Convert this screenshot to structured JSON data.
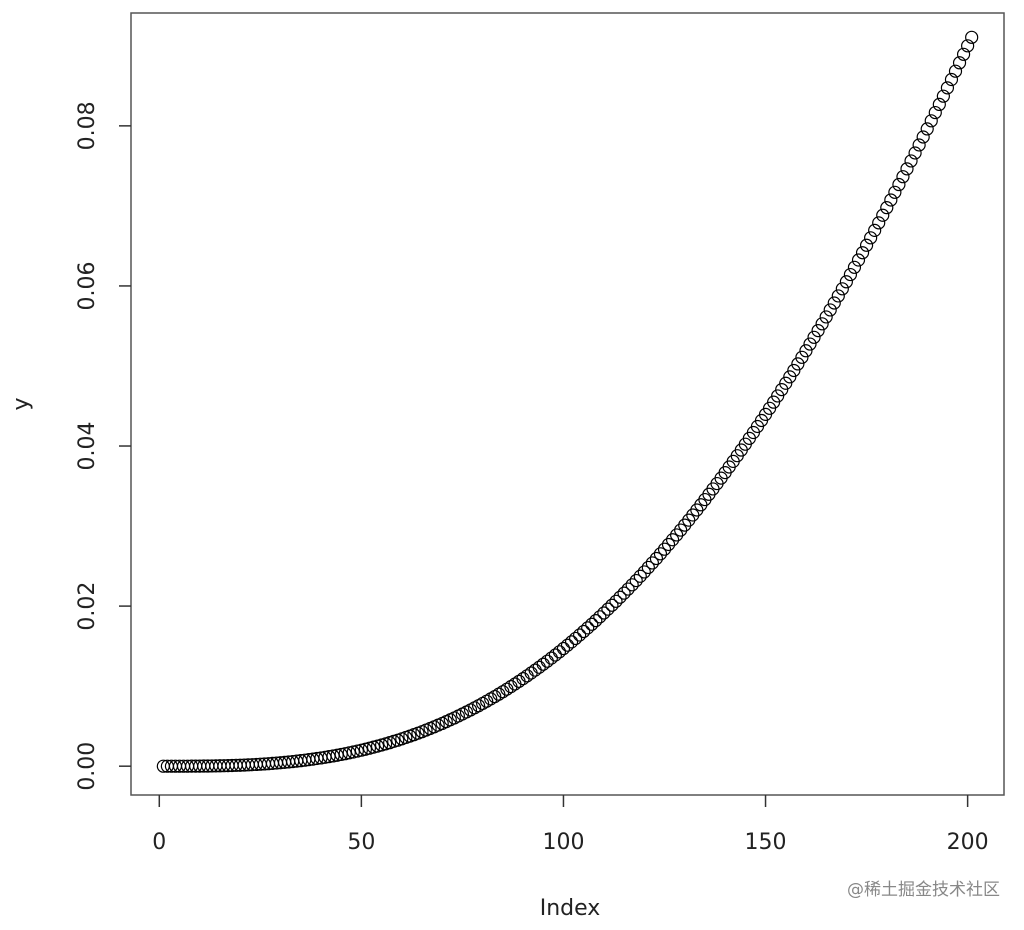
{
  "chart_data": {
    "type": "scatter",
    "xlabel": "Index",
    "ylabel": "y",
    "watermark": "@稀土掘金技术社区",
    "x": [
      1,
      2,
      3,
      4,
      5,
      6,
      7,
      8,
      9,
      10,
      11,
      12,
      13,
      14,
      15,
      16,
      17,
      18,
      19,
      20,
      21,
      22,
      23,
      24,
      25,
      26,
      27,
      28,
      29,
      30,
      31,
      32,
      33,
      34,
      35,
      36,
      37,
      38,
      39,
      40,
      41,
      42,
      43,
      44,
      45,
      46,
      47,
      48,
      49,
      50,
      51,
      52,
      53,
      54,
      55,
      56,
      57,
      58,
      59,
      60,
      61,
      62,
      63,
      64,
      65,
      66,
      67,
      68,
      69,
      70,
      71,
      72,
      73,
      74,
      75,
      76,
      77,
      78,
      79,
      80,
      81,
      82,
      83,
      84,
      85,
      86,
      87,
      88,
      89,
      90,
      91,
      92,
      93,
      94,
      95,
      96,
      97,
      98,
      99,
      100,
      101,
      102,
      103,
      104,
      105,
      106,
      107,
      108,
      109,
      110,
      111,
      112,
      113,
      114,
      115,
      116,
      117,
      118,
      119,
      120,
      121,
      122,
      123,
      124,
      125,
      126,
      127,
      128,
      129,
      130,
      131,
      132,
      133,
      134,
      135,
      136,
      137,
      138,
      139,
      140,
      141,
      142,
      143,
      144,
      145,
      146,
      147,
      148,
      149,
      150,
      151,
      152,
      153,
      154,
      155,
      156,
      157,
      158,
      159,
      160,
      161,
      162,
      163,
      164,
      165,
      166,
      167,
      168,
      169,
      170,
      171,
      172,
      173,
      174,
      175,
      176,
      177,
      178,
      179,
      180,
      181,
      182,
      183,
      184,
      185,
      186,
      187,
      188,
      189,
      190,
      191,
      192,
      193,
      194,
      195,
      196,
      197,
      198,
      199,
      200,
      201
    ],
    "values": [
      0,
      0,
      0,
      0,
      0,
      0,
      0,
      1e-05,
      1e-05,
      1e-05,
      2e-05,
      2e-05,
      3e-05,
      4e-05,
      5e-05,
      6e-05,
      7e-05,
      9e-05,
      0.00011,
      0.00012,
      0.00014,
      0.00017,
      0.00019,
      0.00022,
      0.00025,
      0.00028,
      0.00031,
      0.00035,
      0.00039,
      0.00043,
      0.00048,
      0.00053,
      0.00058,
      0.00063,
      0.00069,
      0.00075,
      0.00082,
      0.00088,
      0.00096,
      0.00103,
      0.00111,
      0.00119,
      0.00128,
      0.00137,
      0.00147,
      0.00156,
      0.00167,
      0.00177,
      0.00189,
      0.002,
      0.00212,
      0.00225,
      0.00238,
      0.00251,
      0.00265,
      0.00279,
      0.00294,
      0.0031,
      0.00325,
      0.00342,
      0.00359,
      0.00376,
      0.00394,
      0.00412,
      0.00431,
      0.00451,
      0.00471,
      0.00492,
      0.00513,
      0.00534,
      0.00557,
      0.0058,
      0.00603,
      0.00627,
      0.00652,
      0.00677,
      0.00703,
      0.00729,
      0.00756,
      0.00784,
      0.00812,
      0.00841,
      0.0087,
      0.009,
      0.00931,
      0.00962,
      0.00994,
      0.01027,
      0.0106,
      0.01094,
      0.01129,
      0.01164,
      0.012,
      0.01236,
      0.01274,
      0.01312,
      0.0135,
      0.01389,
      0.01429,
      0.0147,
      0.01511,
      0.01553,
      0.01596,
      0.01639,
      0.01683,
      0.01728,
      0.01773,
      0.01819,
      0.01866,
      0.01914,
      0.01962,
      0.02011,
      0.0206,
      0.02111,
      0.02162,
      0.02213,
      0.02266,
      0.02319,
      0.02373,
      0.02427,
      0.02483,
      0.02539,
      0.02595,
      0.02653,
      0.02711,
      0.0277,
      0.02829,
      0.02889,
      0.0295,
      0.03012,
      0.03074,
      0.03138,
      0.03201,
      0.03266,
      0.03331,
      0.03397,
      0.03464,
      0.03531,
      0.03599,
      0.03668,
      0.03738,
      0.03808,
      0.03879,
      0.0395,
      0.04023,
      0.04096,
      0.04169,
      0.04244,
      0.04319,
      0.04395,
      0.04471,
      0.04548,
      0.04626,
      0.04705,
      0.04784,
      0.04864,
      0.04944,
      0.05026,
      0.05108,
      0.0519,
      0.05274,
      0.05358,
      0.05442,
      0.05527,
      0.05613,
      0.057,
      0.05787,
      0.05875,
      0.05964,
      0.06052,
      0.06142,
      0.06233,
      0.06324,
      0.06415,
      0.06508,
      0.06601,
      0.06694,
      0.06788,
      0.06883,
      0.06978,
      0.07074,
      0.0717,
      0.07267,
      0.07365,
      0.07463,
      0.07562,
      0.07661,
      0.07761,
      0.07861,
      0.07962,
      0.08063,
      0.08166,
      0.08268,
      0.08371,
      0.08475,
      0.08579,
      0.08683,
      0.08788,
      0.08894,
      0.09,
      0.09106
    ],
    "color": "#000000",
    "xlim": [
      -7,
      209
    ],
    "ylim": [
      -0.0036,
      0.0941
    ],
    "xticks": [
      0,
      50,
      100,
      150,
      200
    ],
    "yticks": [
      {
        "value": 0,
        "label": "0.00"
      },
      {
        "value": 0.02,
        "label": "0.02"
      },
      {
        "value": 0.04,
        "label": "0.04"
      },
      {
        "value": 0.06,
        "label": "0.06"
      },
      {
        "value": 0.08,
        "label": "0.08"
      }
    ]
  }
}
